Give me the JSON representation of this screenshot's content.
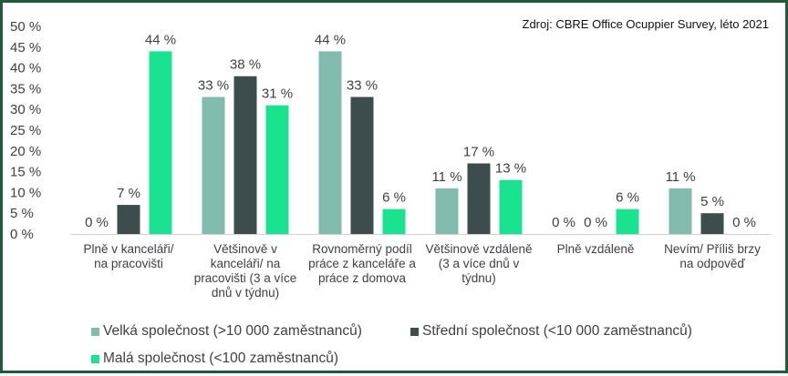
{
  "source_note": "Zdroj: CBRE Office Ocuppier Survey, léto 2021",
  "chart_data": {
    "type": "bar",
    "categories": [
      [
        "Plně v kanceláři/",
        "na pracovišti"
      ],
      [
        "Většinově v",
        "kanceláři/ na",
        "pracovišti (3 a více",
        "dnů v týdnu)"
      ],
      [
        "Rovnoměrný podíl",
        "práce z kanceláře a",
        "práce z domova"
      ],
      [
        "Většinově vzdáleně",
        "(3 a více dnů v",
        "týdnu)"
      ],
      [
        "Plně vzdáleně"
      ],
      [
        "Nevím/ Příliš brzy",
        "na odpověď"
      ]
    ],
    "series": [
      {
        "name": "Velká společnost (>10 000 zaměstnanců)",
        "color": "#82bcae",
        "values": [
          0,
          33,
          44,
          11,
          0,
          11
        ]
      },
      {
        "name": "Střední společnost (<10 000 zaměstnanců)",
        "color": "#3d4c4c",
        "values": [
          7,
          38,
          33,
          17,
          0,
          5
        ]
      },
      {
        "name": "Malá společnost (<100 zaměstnanců)",
        "color": "#19e38f",
        "values": [
          44,
          31,
          6,
          13,
          6,
          0
        ]
      }
    ],
    "value_suffix": " %",
    "ylim": [
      0,
      50
    ],
    "yticks": [
      0,
      5,
      10,
      15,
      20,
      25,
      30,
      35,
      40,
      45,
      50
    ],
    "grid": false,
    "legend_position": "bottom"
  }
}
